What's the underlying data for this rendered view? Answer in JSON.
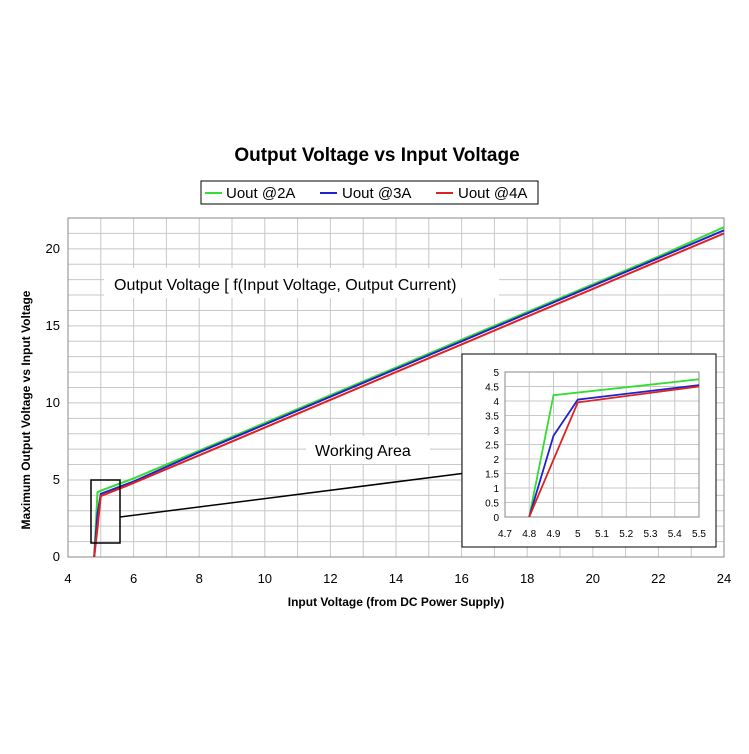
{
  "chart_data": [
    {
      "type": "line",
      "title": "Output Voltage vs Input Voltage",
      "xlabel": "Input Voltage (from DC Power Supply)",
      "ylabel": "Maximum Output Voltage vs Input Voltage",
      "xlim": [
        4,
        24
      ],
      "ylim": [
        0,
        22
      ],
      "xticks": [
        "4",
        "6",
        "8",
        "10",
        "12",
        "14",
        "16",
        "18",
        "20",
        "22",
        "24"
      ],
      "yticks": [
        "0",
        "5",
        "10",
        "15",
        "20"
      ],
      "grid": true,
      "legend_position": "top",
      "annotations": [
        "Output Voltage [ f(Input Voltage, Output Current)",
        "Working Area"
      ],
      "series": [
        {
          "name": "Uout @2A",
          "color": "#33dd33",
          "x": [
            4.8,
            4.9,
            5,
            6,
            8,
            10,
            12,
            14,
            16,
            18,
            20,
            22,
            24
          ],
          "y": [
            0,
            4.2,
            4.3,
            5.1,
            6.9,
            8.7,
            10.5,
            12.3,
            14.1,
            15.9,
            17.7,
            19.5,
            21.4
          ]
        },
        {
          "name": "Uout @3A",
          "color": "#2222cc",
          "x": [
            4.8,
            4.9,
            5,
            6,
            8,
            10,
            12,
            14,
            16,
            18,
            20,
            22,
            24
          ],
          "y": [
            0,
            2.8,
            4.1,
            4.9,
            6.8,
            8.6,
            10.4,
            12.2,
            14.0,
            15.8,
            17.6,
            19.4,
            21.2
          ]
        },
        {
          "name": "Uout @4A",
          "color": "#dd2222",
          "x": [
            4.8,
            4.9,
            5,
            6,
            8,
            10,
            12,
            14,
            16,
            18,
            20,
            22,
            24
          ],
          "y": [
            0,
            1.9,
            3.95,
            4.8,
            6.6,
            8.4,
            10.2,
            12.0,
            13.8,
            15.6,
            17.4,
            19.2,
            21.0
          ]
        }
      ]
    },
    {
      "type": "line",
      "title": "",
      "xlim": [
        4.7,
        5.5
      ],
      "ylim": [
        0,
        5
      ],
      "xticks": [
        "4.7",
        "4.8",
        "4.9",
        "5",
        "5.1",
        "5.2",
        "5.3",
        "5.4",
        "5.5"
      ],
      "yticks": [
        "0",
        "0.5",
        "1",
        "1.5",
        "2",
        "2.5",
        "3",
        "3.5",
        "4",
        "4.5",
        "5"
      ],
      "grid": true,
      "series": [
        {
          "name": "Uout @2A",
          "color": "#33dd33",
          "x": [
            4.8,
            4.9,
            5.5
          ],
          "y": [
            0,
            4.2,
            4.75
          ]
        },
        {
          "name": "Uout @3A",
          "color": "#2222cc",
          "x": [
            4.8,
            4.9,
            5.0,
            5.5
          ],
          "y": [
            0,
            2.8,
            4.05,
            4.55
          ]
        },
        {
          "name": "Uout @4A",
          "color": "#dd2222",
          "x": [
            4.8,
            5.0,
            5.5
          ],
          "y": [
            0,
            3.95,
            4.5
          ]
        }
      ]
    }
  ]
}
